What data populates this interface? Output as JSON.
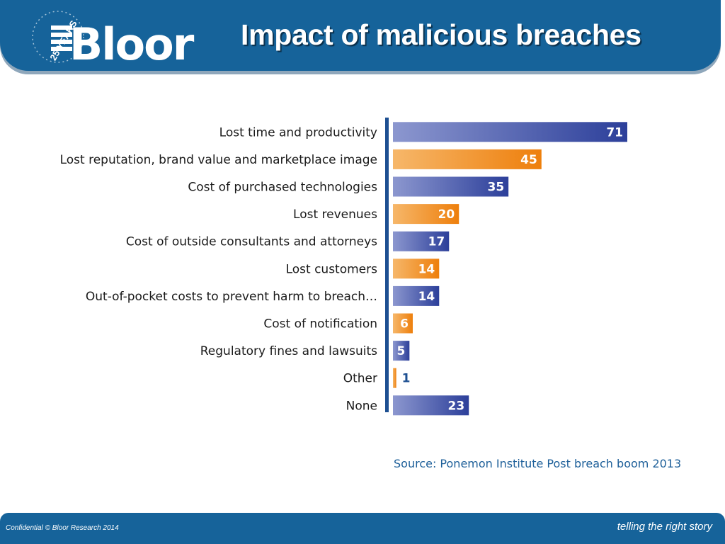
{
  "header": {
    "title": "Impact of malicious breaches",
    "logo": {
      "text": "Bloor",
      "badge": "25 YEARS"
    }
  },
  "colors": {
    "header": "#16639a",
    "blue_bar": "#3a4fa6",
    "orange_bar": "#f08a1a",
    "axis": "#1d4f91"
  },
  "chart_data": {
    "type": "bar",
    "orientation": "horizontal",
    "categories": [
      "Lost time and productivity",
      "Lost reputation, brand value and marketplace image",
      "Cost of purchased technologies",
      "Lost revenues",
      "Cost of outside consultants and attorneys",
      "Lost customers",
      "Out-of-pocket costs to prevent harm to breach…",
      "Cost of notification",
      "Regulatory fines and lawsuits",
      "Other",
      "None"
    ],
    "values": [
      71,
      45,
      35,
      20,
      17,
      14,
      14,
      6,
      5,
      1,
      23
    ],
    "bar_colors": [
      "blue",
      "orange",
      "blue",
      "orange",
      "blue",
      "orange",
      "blue",
      "orange",
      "blue",
      "orange",
      "blue"
    ],
    "xlim": [
      0,
      71
    ],
    "grid": false,
    "data_labels": true
  },
  "source": "Source: Ponemon Institute Post breach boom 2013",
  "footer": {
    "left": "Confidential © Bloor Research 2014",
    "right": "telling the right story"
  }
}
